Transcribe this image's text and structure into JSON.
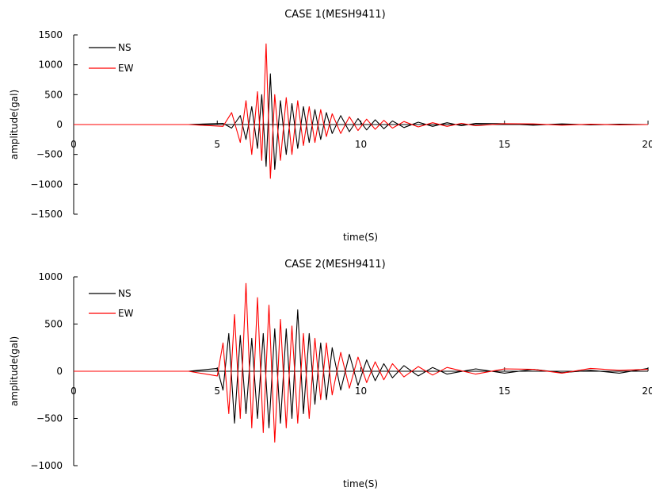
{
  "chart_data": [
    {
      "type": "line",
      "title": "CASE 1(MESH9411)",
      "xlabel": "time(S)",
      "ylabel": "amplitude(gal)",
      "xlim": [
        0,
        20
      ],
      "ylim": [
        -1500,
        1500
      ],
      "xticks": [
        "0",
        "5",
        "10",
        "15",
        "20"
      ],
      "yticks": [
        "1500",
        "1000",
        "500",
        "0",
        "-500",
        "-1000",
        "-1500"
      ],
      "legend_position": "top-left",
      "colors": {
        "NS": "#000000",
        "EW": "#ff0000"
      },
      "series": [
        {
          "name": "NS",
          "x": [
            0,
            4,
            5.2,
            5.5,
            5.8,
            6.0,
            6.2,
            6.4,
            6.55,
            6.7,
            6.85,
            7.0,
            7.2,
            7.4,
            7.6,
            7.8,
            8.0,
            8.2,
            8.4,
            8.6,
            8.8,
            9.0,
            9.3,
            9.6,
            9.9,
            10.2,
            10.5,
            10.8,
            11.1,
            11.5,
            12.0,
            12.5,
            13.0,
            13.5,
            14.0,
            15.0,
            16.0,
            17.0,
            18.0,
            19.0,
            20.0
          ],
          "values": [
            0,
            0,
            20,
            -60,
            150,
            -250,
            300,
            -400,
            500,
            -700,
            850,
            -750,
            400,
            -500,
            350,
            -400,
            300,
            -300,
            250,
            -250,
            200,
            -150,
            150,
            -120,
            100,
            -90,
            80,
            -70,
            60,
            -50,
            40,
            -30,
            30,
            -20,
            20,
            15,
            -10,
            10,
            -5,
            5,
            0
          ]
        },
        {
          "name": "EW",
          "x": [
            0,
            4,
            5.2,
            5.5,
            5.8,
            6.0,
            6.2,
            6.4,
            6.55,
            6.7,
            6.85,
            7.0,
            7.2,
            7.4,
            7.6,
            7.8,
            8.0,
            8.2,
            8.4,
            8.6,
            8.8,
            9.0,
            9.3,
            9.6,
            9.9,
            10.2,
            10.5,
            10.8,
            11.1,
            11.5,
            12.0,
            12.5,
            13.0,
            13.5,
            14.0,
            15.0,
            16.0,
            17.0,
            18.0,
            19.0,
            20.0
          ],
          "values": [
            0,
            0,
            -30,
            200,
            -300,
            400,
            -500,
            550,
            -600,
            1350,
            -900,
            500,
            -600,
            450,
            -500,
            400,
            -350,
            300,
            -300,
            250,
            -200,
            180,
            -150,
            130,
            -100,
            90,
            -80,
            70,
            -60,
            50,
            -40,
            30,
            -30,
            20,
            -20,
            15,
            10,
            -10,
            5,
            -5,
            0
          ]
        }
      ]
    },
    {
      "type": "line",
      "title": "CASE 2(MESH9411)",
      "xlabel": "time(S)",
      "ylabel": "amplitude(gal)",
      "xlim": [
        0,
        20
      ],
      "ylim": [
        -1000,
        1000
      ],
      "xticks": [
        "0",
        "5",
        "10",
        "15",
        "20"
      ],
      "yticks": [
        "1000",
        "500",
        "0",
        "-500",
        "-1000"
      ],
      "legend_position": "top-left",
      "colors": {
        "NS": "#000000",
        "EW": "#ff0000"
      },
      "series": [
        {
          "name": "NS",
          "x": [
            0,
            4,
            5.0,
            5.2,
            5.4,
            5.6,
            5.8,
            6.0,
            6.2,
            6.4,
            6.6,
            6.8,
            7.0,
            7.2,
            7.4,
            7.6,
            7.8,
            8.0,
            8.2,
            8.4,
            8.6,
            8.8,
            9.0,
            9.3,
            9.6,
            9.9,
            10.2,
            10.5,
            10.8,
            11.1,
            11.5,
            12.0,
            12.5,
            13.0,
            14.0,
            15.0,
            16.0,
            17.0,
            18.0,
            19.0,
            20.0
          ],
          "values": [
            0,
            0,
            30,
            -200,
            400,
            -550,
            380,
            -450,
            350,
            -500,
            400,
            -600,
            450,
            -550,
            450,
            -500,
            650,
            -450,
            400,
            -350,
            300,
            -300,
            250,
            -200,
            180,
            -150,
            120,
            -100,
            80,
            -70,
            60,
            -50,
            40,
            -30,
            25,
            -20,
            20,
            -15,
            10,
            -20,
            30
          ]
        },
        {
          "name": "EW",
          "x": [
            0,
            4,
            5.0,
            5.2,
            5.4,
            5.6,
            5.8,
            6.0,
            6.2,
            6.4,
            6.6,
            6.8,
            7.0,
            7.2,
            7.4,
            7.6,
            7.8,
            8.0,
            8.2,
            8.4,
            8.6,
            8.8,
            9.0,
            9.3,
            9.6,
            9.9,
            10.2,
            10.5,
            10.8,
            11.1,
            11.5,
            12.0,
            12.5,
            13.0,
            14.0,
            15.0,
            16.0,
            17.0,
            18.0,
            19.0,
            20.0
          ],
          "values": [
            0,
            0,
            -50,
            300,
            -450,
            600,
            -500,
            930,
            -600,
            780,
            -650,
            700,
            -750,
            550,
            -600,
            480,
            -550,
            400,
            -500,
            350,
            -300,
            300,
            -250,
            200,
            -180,
            150,
            -120,
            100,
            -90,
            80,
            -60,
            50,
            -40,
            40,
            -30,
            25,
            20,
            -20,
            30,
            10,
            20
          ]
        }
      ]
    }
  ]
}
